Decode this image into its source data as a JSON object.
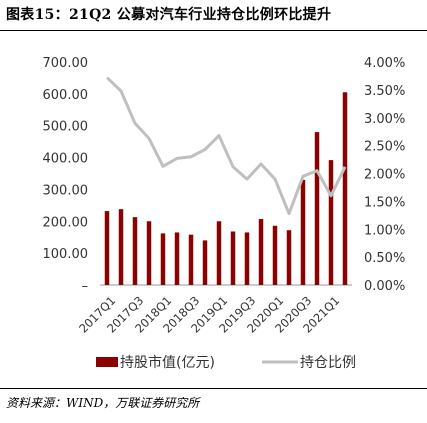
{
  "header": {
    "title": "图表15：21Q2 公募对汽车行业持仓比例环比提升"
  },
  "footer": {
    "source": "资料来源：WIND，万联证券研究所"
  },
  "colors": {
    "bar": "#8B0000",
    "line": "#BFBFBF"
  },
  "chart_data": {
    "type": "bar",
    "title": "",
    "categories": [
      "2017Q1",
      "2017Q2",
      "2017Q3",
      "2017Q4",
      "2018Q1",
      "2018Q2",
      "2018Q3",
      "2018Q4",
      "2019Q1",
      "2019Q2",
      "2019Q3",
      "2019Q4",
      "2020Q1",
      "2020Q2",
      "2020Q3",
      "2020Q4",
      "2021Q1",
      "2021Q2"
    ],
    "x_tick_labels": [
      "2017Q1",
      "2017Q3",
      "2018Q1",
      "2018Q3",
      "2019Q1",
      "2019Q3",
      "2020Q1",
      "2020Q3",
      "2021Q1"
    ],
    "y_left": {
      "ticks": [
        "–",
        "100.00",
        "200.00",
        "300.00",
        "400.00",
        "500.00",
        "600.00",
        "700.00"
      ],
      "ylim": [
        0,
        700
      ]
    },
    "y_right": {
      "ticks": [
        "0.00%",
        "0.50%",
        "1.00%",
        "1.50%",
        "2.00%",
        "2.50%",
        "3.00%",
        "3.50%",
        "4.00%"
      ],
      "ylim": [
        0,
        4.0
      ]
    },
    "series": [
      {
        "name": "持股市值(亿元)",
        "type": "bar",
        "axis": "left",
        "values": [
          232,
          238,
          213,
          200,
          162,
          165,
          158,
          140,
          200,
          168,
          165,
          207,
          186,
          172,
          330,
          480,
          392,
          605
        ]
      },
      {
        "name": "持仓比例",
        "type": "line",
        "axis": "right",
        "values": [
          3.72,
          3.48,
          2.9,
          2.63,
          2.13,
          2.27,
          2.3,
          2.43,
          2.68,
          2.12,
          1.9,
          2.17,
          1.9,
          1.28,
          1.95,
          2.05,
          1.6,
          2.12
        ]
      }
    ],
    "legend": {
      "position": "bottom",
      "items": [
        "持股市值(亿元)",
        "持仓比例"
      ]
    },
    "grid": false
  }
}
